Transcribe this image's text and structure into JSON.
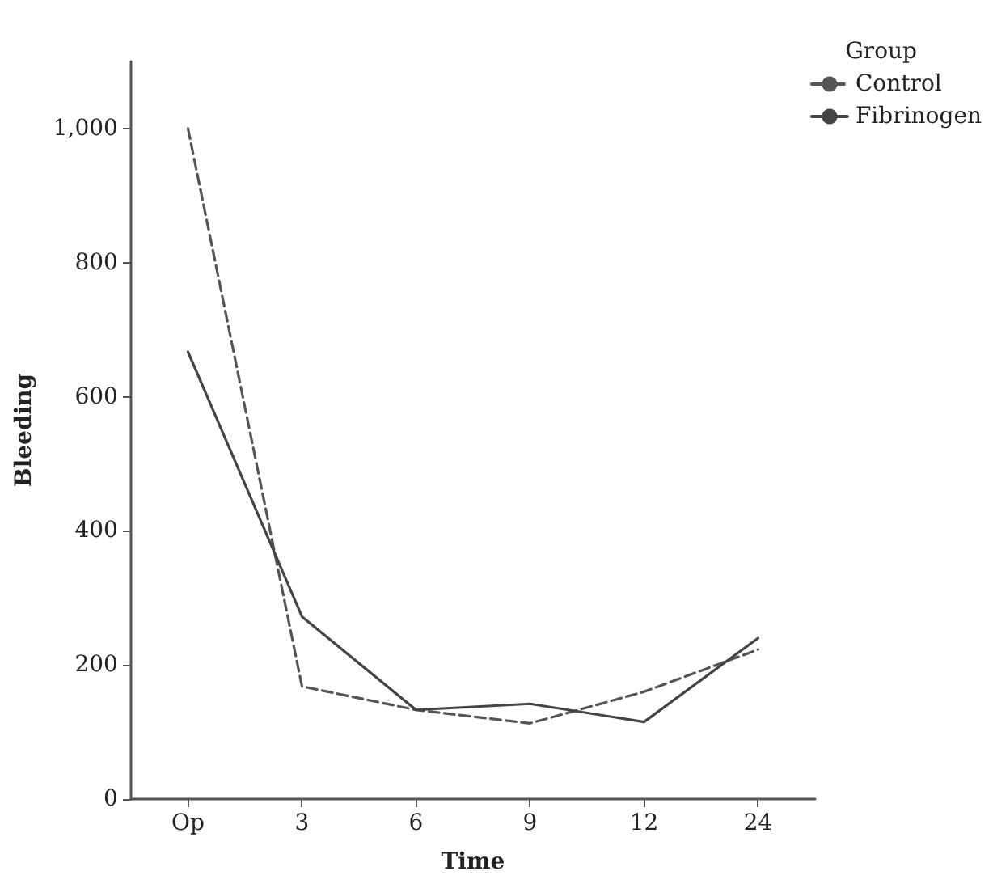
{
  "chart_data": {
    "type": "line",
    "xlabel": "Time",
    "ylabel": "Bleeding",
    "legend_title": "Group",
    "categories": [
      "Op",
      "3",
      "6",
      "9",
      "12",
      "24"
    ],
    "series": [
      {
        "name": "Control",
        "color": "#555555",
        "line_style": "dashed",
        "values": [
          1000,
          168,
          133,
          113,
          160,
          223
        ]
      },
      {
        "name": "Fibrinogen",
        "color": "#444444",
        "line_style": "solid",
        "values": [
          667,
          272,
          133,
          142,
          115,
          240
        ]
      }
    ],
    "ylim": [
      0,
      1100
    ],
    "yticks": [
      0,
      200,
      400,
      600,
      800,
      {
        "value": 1000,
        "label": "1,000"
      }
    ],
    "grid": false,
    "legend": "top right",
    "marker": "none"
  }
}
